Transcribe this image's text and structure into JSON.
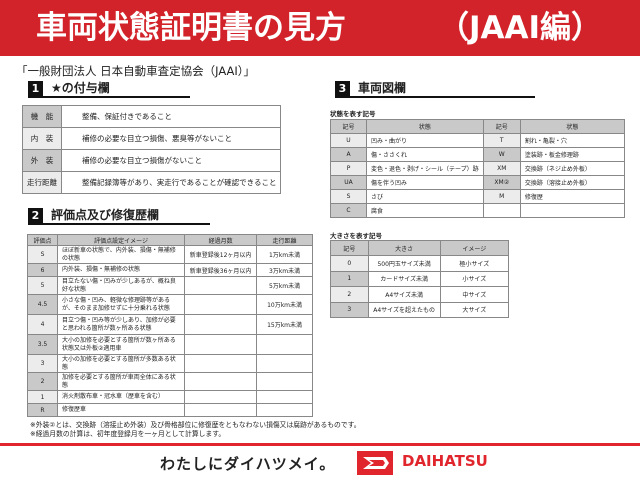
{
  "header": {
    "title": "車両状態証明書の見方",
    "title_suffix": "（JAAI編）"
  },
  "subtitle": "「一般財団法人 日本自動車査定協会（JAAI）」",
  "section1": {
    "num": "1",
    "title": "★の付与欄",
    "rows": [
      {
        "label": "機　能",
        "desc": "整備、保証付きであること"
      },
      {
        "label": "内　装",
        "desc": "補修の必要な目立つ損傷、悪臭等がないこと"
      },
      {
        "label": "外　装",
        "desc": "補修の必要な目立つ損傷がないこと"
      },
      {
        "label": "走行距離",
        "desc": "整備記録簿等があり、実走行であることが確認できること"
      }
    ]
  },
  "section2": {
    "num": "2",
    "title": "評価点及び修復歴欄",
    "headers": [
      "評価点",
      "評価点設定イメージ",
      "経過月数",
      "走行距離"
    ],
    "rows": [
      [
        "S",
        "ほぼ新車の状態で、内外装、損傷・無補修の状態",
        "新車登録後12ヶ月以内",
        "1万km未満"
      ],
      [
        "6",
        "内外装、損傷・無補修の状態",
        "新車登録後36ヶ月以内",
        "3万km未満"
      ],
      [
        "5",
        "目立たない傷・凹みが少しあるが、概ね良好な状態",
        "",
        "5万km未満"
      ],
      [
        "4.5",
        "小さな傷・凹み、軽微な修理跡等があるが、そのまま加修せずに十分乗れる状態",
        "",
        "10万km未満"
      ],
      [
        "4",
        "目立つ傷・凹み等が少しあり、加修が必要と思われる箇所が数ヶ所ある状態",
        "",
        "15万km未満"
      ],
      [
        "3.5",
        "大小の加修を必要とする箇所が数ヶ所ある状態又は外板②適用車",
        "",
        ""
      ],
      [
        "3",
        "大小の加修を必要とする箇所が多数ある状態",
        "",
        ""
      ],
      [
        "2",
        "加修を必要とする箇所が車両全体にある状態",
        "",
        ""
      ],
      [
        "1",
        "消火剤散布車・冠水車（歴車を含む）",
        "",
        ""
      ],
      [
        "R",
        "修復歴車",
        "",
        ""
      ]
    ],
    "notes": [
      "※外装②とは、交換跡（溶接止め外装）及び骨格部位に修復歴をともなわない損傷又は腐跡があるものです。",
      "※経過月数の計算は、初年度登録月を一ヶ月として計算します。"
    ]
  },
  "section3": {
    "num": "3",
    "title": "車両図欄",
    "state_label": "状態を表す記号",
    "state_headers": [
      "記号",
      "状態",
      "記号",
      "状態"
    ],
    "state_rows": [
      [
        "U",
        "凹み・曲がり",
        "T",
        "割れ・亀裂・穴"
      ],
      [
        "A",
        "傷・ささくれ",
        "W",
        "塗装跡・板金修理跡"
      ],
      [
        "P",
        "変色・退色・剥げ・シール（テープ）跡",
        "XM",
        "交換跡（ネジ止め外板）"
      ],
      [
        "UA",
        "傷を伴う凹み",
        "XM②",
        "交換跡（溶接止め外板）"
      ],
      [
        "S",
        "さび",
        "M",
        "修復歴"
      ],
      [
        "C",
        "腐食",
        "",
        ""
      ]
    ],
    "size_label": "大きさを表す記号",
    "size_headers": [
      "記号",
      "大きさ",
      "イメージ"
    ],
    "size_rows": [
      [
        "0",
        "500円玉サイズ未満",
        "極小サイズ"
      ],
      [
        "1",
        "カードサイズ未満",
        "小サイズ"
      ],
      [
        "2",
        "A4サイズ未満",
        "中サイズ"
      ],
      [
        "3",
        "A4サイズを超えたもの",
        "大サイズ"
      ]
    ]
  },
  "footer": {
    "slogan": "わたしにダイハツメイ。",
    "brand": "DAIHATSU"
  },
  "colors": {
    "accent": "#d2232a",
    "header_cell": "#c9c9c9"
  }
}
